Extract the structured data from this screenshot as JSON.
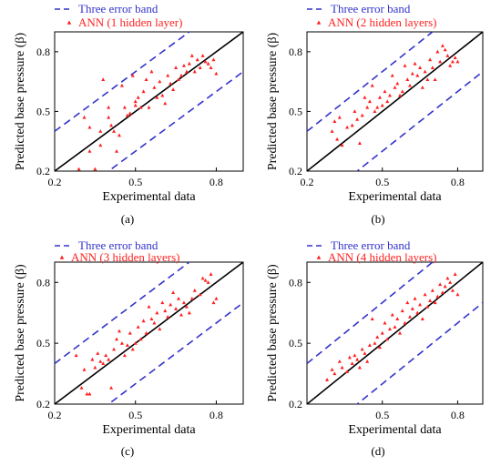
{
  "chart_data": [
    {
      "type": "scatter",
      "label": "(a)",
      "xlabel": "Experimental data",
      "ylabel": "Predicted base pressure (β)",
      "xlim": [
        0.2,
        0.9
      ],
      "ylim": [
        0.2,
        0.9
      ],
      "xticks": [
        "0.2",
        "0.5",
        "0.8"
      ],
      "yticks": [
        "0.2",
        "0.5",
        "0.8"
      ],
      "legend": [
        "Three error band",
        "ANN (1 hidden layer)"
      ],
      "colors": {
        "band": "#3333cc",
        "points": "#ff2020",
        "identity": "#000000"
      },
      "points": [
        [
          0.29,
          0.21
        ],
        [
          0.31,
          0.47
        ],
        [
          0.33,
          0.42
        ],
        [
          0.33,
          0.3
        ],
        [
          0.35,
          0.21
        ],
        [
          0.37,
          0.4
        ],
        [
          0.37,
          0.33
        ],
        [
          0.38,
          0.66
        ],
        [
          0.4,
          0.52
        ],
        [
          0.4,
          0.47
        ],
        [
          0.41,
          0.43
        ],
        [
          0.42,
          0.4
        ],
        [
          0.43,
          0.3
        ],
        [
          0.44,
          0.38
        ],
        [
          0.45,
          0.63
        ],
        [
          0.46,
          0.52
        ],
        [
          0.47,
          0.48
        ],
        [
          0.48,
          0.49
        ],
        [
          0.49,
          0.68
        ],
        [
          0.5,
          0.55
        ],
        [
          0.5,
          0.53
        ],
        [
          0.51,
          0.57
        ],
        [
          0.52,
          0.52
        ],
        [
          0.53,
          0.6
        ],
        [
          0.54,
          0.66
        ],
        [
          0.55,
          0.52
        ],
        [
          0.56,
          0.7
        ],
        [
          0.57,
          0.62
        ],
        [
          0.58,
          0.57
        ],
        [
          0.59,
          0.65
        ],
        [
          0.6,
          0.58
        ],
        [
          0.61,
          0.54
        ],
        [
          0.62,
          0.68
        ],
        [
          0.63,
          0.64
        ],
        [
          0.64,
          0.61
        ],
        [
          0.65,
          0.72
        ],
        [
          0.66,
          0.66
        ],
        [
          0.67,
          0.68
        ],
        [
          0.68,
          0.73
        ],
        [
          0.69,
          0.7
        ],
        [
          0.7,
          0.74
        ],
        [
          0.71,
          0.78
        ],
        [
          0.72,
          0.7
        ],
        [
          0.73,
          0.76
        ],
        [
          0.74,
          0.72
        ],
        [
          0.75,
          0.78
        ],
        [
          0.76,
          0.75
        ],
        [
          0.77,
          0.74
        ],
        [
          0.78,
          0.72
        ],
        [
          0.79,
          0.76
        ],
        [
          0.8,
          0.69
        ]
      ]
    },
    {
      "type": "scatter",
      "label": "(b)",
      "xlabel": "Experimental data",
      "ylabel": "Predicted base pressure (β)",
      "xlim": [
        0.2,
        0.9
      ],
      "ylim": [
        0.2,
        0.9
      ],
      "xticks": [
        "0.2",
        "0.5",
        "0.8"
      ],
      "yticks": [
        "0.2",
        "0.5",
        "0.8"
      ],
      "legend": [
        "Three error band",
        "ANN (2 hidden layers)"
      ],
      "colors": {
        "band": "#3333cc",
        "points": "#ff2020",
        "identity": "#000000"
      },
      "points": [
        [
          0.3,
          0.4
        ],
        [
          0.31,
          0.45
        ],
        [
          0.32,
          0.36
        ],
        [
          0.33,
          0.47
        ],
        [
          0.34,
          0.33
        ],
        [
          0.36,
          0.42
        ],
        [
          0.38,
          0.43
        ],
        [
          0.39,
          0.5
        ],
        [
          0.4,
          0.46
        ],
        [
          0.41,
          0.34
        ],
        [
          0.42,
          0.48
        ],
        [
          0.43,
          0.57
        ],
        [
          0.44,
          0.52
        ],
        [
          0.45,
          0.55
        ],
        [
          0.46,
          0.63
        ],
        [
          0.47,
          0.5
        ],
        [
          0.48,
          0.52
        ],
        [
          0.49,
          0.57
        ],
        [
          0.5,
          0.53
        ],
        [
          0.51,
          0.6
        ],
        [
          0.52,
          0.55
        ],
        [
          0.53,
          0.58
        ],
        [
          0.54,
          0.68
        ],
        [
          0.55,
          0.62
        ],
        [
          0.56,
          0.64
        ],
        [
          0.57,
          0.58
        ],
        [
          0.58,
          0.6
        ],
        [
          0.59,
          0.73
        ],
        [
          0.6,
          0.66
        ],
        [
          0.61,
          0.63
        ],
        [
          0.62,
          0.69
        ],
        [
          0.63,
          0.74
        ],
        [
          0.64,
          0.68
        ],
        [
          0.65,
          0.72
        ],
        [
          0.66,
          0.62
        ],
        [
          0.67,
          0.7
        ],
        [
          0.68,
          0.66
        ],
        [
          0.69,
          0.76
        ],
        [
          0.7,
          0.72
        ],
        [
          0.71,
          0.66
        ],
        [
          0.72,
          0.8
        ],
        [
          0.73,
          0.75
        ],
        [
          0.74,
          0.83
        ],
        [
          0.75,
          0.81
        ],
        [
          0.76,
          0.78
        ],
        [
          0.77,
          0.73
        ],
        [
          0.78,
          0.75
        ],
        [
          0.79,
          0.77
        ],
        [
          0.8,
          0.75
        ]
      ]
    },
    {
      "type": "scatter",
      "label": "(c)",
      "xlabel": "Experimental data",
      "ylabel": "Predicted base pressure (β)",
      "xlim": [
        0.2,
        0.9
      ],
      "ylim": [
        0.2,
        0.9
      ],
      "xticks": [
        "0.2",
        "0.5",
        "0.8"
      ],
      "yticks": [
        "0.2",
        "0.5",
        "0.8"
      ],
      "legend": [
        "Three error band",
        "ANN (3 hidden layers)"
      ],
      "colors": {
        "band": "#3333cc",
        "points": "#ff2020",
        "identity": "#000000"
      },
      "points": [
        [
          0.28,
          0.44
        ],
        [
          0.3,
          0.28
        ],
        [
          0.31,
          0.37
        ],
        [
          0.32,
          0.25
        ],
        [
          0.33,
          0.25
        ],
        [
          0.34,
          0.42
        ],
        [
          0.35,
          0.38
        ],
        [
          0.36,
          0.45
        ],
        [
          0.37,
          0.41
        ],
        [
          0.38,
          0.4
        ],
        [
          0.39,
          0.44
        ],
        [
          0.4,
          0.42
        ],
        [
          0.41,
          0.28
        ],
        [
          0.42,
          0.47
        ],
        [
          0.43,
          0.52
        ],
        [
          0.44,
          0.56
        ],
        [
          0.45,
          0.5
        ],
        [
          0.46,
          0.44
        ],
        [
          0.47,
          0.49
        ],
        [
          0.48,
          0.55
        ],
        [
          0.49,
          0.47
        ],
        [
          0.5,
          0.5
        ],
        [
          0.51,
          0.58
        ],
        [
          0.52,
          0.52
        ],
        [
          0.53,
          0.61
        ],
        [
          0.54,
          0.55
        ],
        [
          0.55,
          0.68
        ],
        [
          0.56,
          0.62
        ],
        [
          0.57,
          0.6
        ],
        [
          0.58,
          0.65
        ],
        [
          0.59,
          0.57
        ],
        [
          0.6,
          0.7
        ],
        [
          0.61,
          0.66
        ],
        [
          0.62,
          0.63
        ],
        [
          0.63,
          0.69
        ],
        [
          0.64,
          0.75
        ],
        [
          0.65,
          0.67
        ],
        [
          0.66,
          0.72
        ],
        [
          0.67,
          0.64
        ],
        [
          0.68,
          0.7
        ],
        [
          0.69,
          0.68
        ],
        [
          0.7,
          0.65
        ],
        [
          0.71,
          0.72
        ],
        [
          0.72,
          0.76
        ],
        [
          0.74,
          0.74
        ],
        [
          0.75,
          0.82
        ],
        [
          0.76,
          0.81
        ],
        [
          0.77,
          0.8
        ],
        [
          0.78,
          0.84
        ],
        [
          0.79,
          0.7
        ],
        [
          0.8,
          0.72
        ]
      ]
    },
    {
      "type": "scatter",
      "label": "(d)",
      "xlabel": "Experimental data",
      "ylabel": "Predicted base pressure (β)",
      "xlim": [
        0.2,
        0.9
      ],
      "ylim": [
        0.2,
        0.9
      ],
      "xticks": [
        "0.5",
        "0.8"
      ],
      "yticks": [
        "0.2",
        "0.5",
        "0.8"
      ],
      "legend": [
        "Three error band",
        "ANN (4 hidden layers)"
      ],
      "colors": {
        "band": "#3333cc",
        "points": "#ff2020",
        "identity": "#000000"
      },
      "points": [
        [
          0.28,
          0.32
        ],
        [
          0.3,
          0.37
        ],
        [
          0.31,
          0.35
        ],
        [
          0.33,
          0.41
        ],
        [
          0.34,
          0.38
        ],
        [
          0.36,
          0.36
        ],
        [
          0.37,
          0.43
        ],
        [
          0.38,
          0.4
        ],
        [
          0.39,
          0.44
        ],
        [
          0.4,
          0.42
        ],
        [
          0.41,
          0.38
        ],
        [
          0.42,
          0.47
        ],
        [
          0.43,
          0.45
        ],
        [
          0.44,
          0.41
        ],
        [
          0.45,
          0.49
        ],
        [
          0.46,
          0.62
        ],
        [
          0.47,
          0.5
        ],
        [
          0.48,
          0.53
        ],
        [
          0.49,
          0.48
        ],
        [
          0.5,
          0.55
        ],
        [
          0.51,
          0.6
        ],
        [
          0.52,
          0.52
        ],
        [
          0.53,
          0.57
        ],
        [
          0.54,
          0.64
        ],
        [
          0.55,
          0.58
        ],
        [
          0.56,
          0.62
        ],
        [
          0.57,
          0.55
        ],
        [
          0.58,
          0.66
        ],
        [
          0.59,
          0.6
        ],
        [
          0.6,
          0.7
        ],
        [
          0.61,
          0.63
        ],
        [
          0.62,
          0.67
        ],
        [
          0.63,
          0.72
        ],
        [
          0.64,
          0.65
        ],
        [
          0.65,
          0.69
        ],
        [
          0.66,
          0.62
        ],
        [
          0.67,
          0.74
        ],
        [
          0.68,
          0.68
        ],
        [
          0.69,
          0.71
        ],
        [
          0.7,
          0.76
        ],
        [
          0.71,
          0.7
        ],
        [
          0.72,
          0.73
        ],
        [
          0.73,
          0.79
        ],
        [
          0.74,
          0.75
        ],
        [
          0.75,
          0.78
        ],
        [
          0.76,
          0.82
        ],
        [
          0.77,
          0.8
        ],
        [
          0.78,
          0.76
        ],
        [
          0.79,
          0.84
        ],
        [
          0.8,
          0.74
        ]
      ]
    }
  ]
}
